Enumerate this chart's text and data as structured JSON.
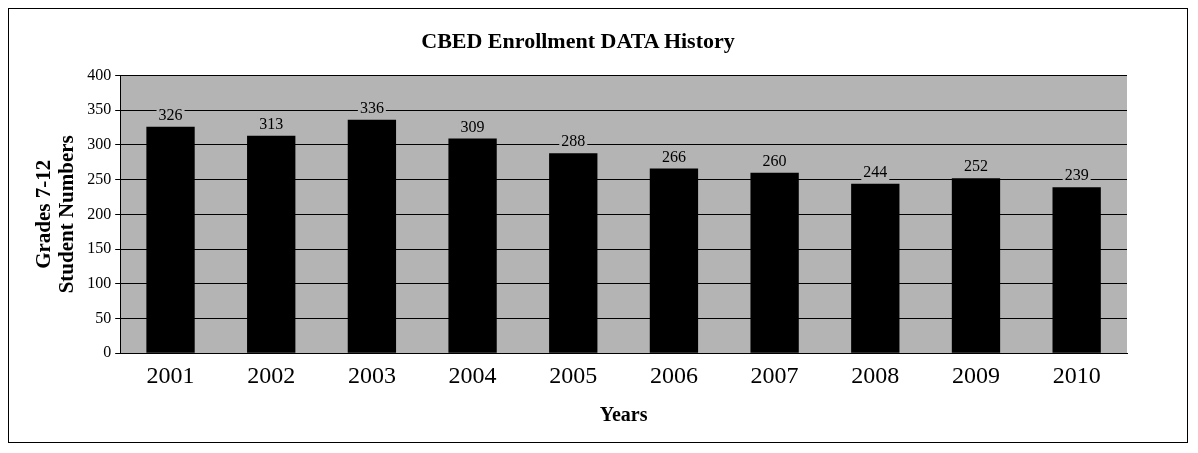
{
  "chart_data": {
    "type": "bar",
    "title": "CBED Enrollment DATA History",
    "xlabel": "Years",
    "ylabel": "Grades 7-12\nStudent Numbers",
    "categories": [
      "2001",
      "2002",
      "2003",
      "2004",
      "2005",
      "2006",
      "2007",
      "2008",
      "2009",
      "2010"
    ],
    "values": [
      326,
      313,
      336,
      309,
      288,
      266,
      260,
      244,
      252,
      239
    ],
    "color": "#000000",
    "ylim": [
      0,
      400
    ],
    "yticks": [
      0,
      50,
      100,
      150,
      200,
      250,
      300,
      350,
      400
    ],
    "grid": "y",
    "data_labels": true,
    "legend": false
  }
}
